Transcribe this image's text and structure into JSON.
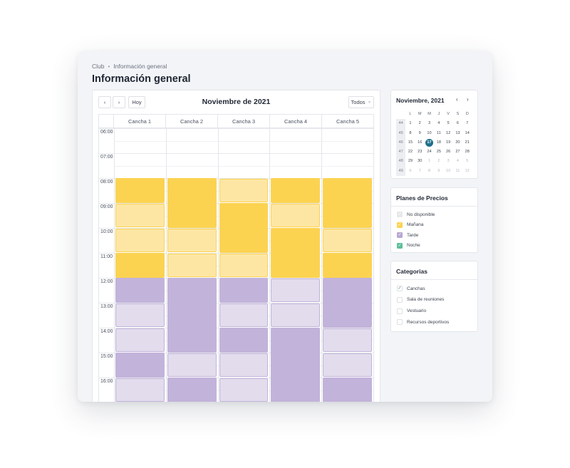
{
  "breadcrumb": {
    "parent": "Club",
    "separator": "•",
    "current": "Información general"
  },
  "page": {
    "title": "Información general"
  },
  "toolbar": {
    "prev": "‹",
    "next": "›",
    "today": "Hoy",
    "month": "Noviembre de 2021",
    "filter": "Todos",
    "filter_caret": "⌄"
  },
  "columns": [
    "Cancha 1",
    "Cancha 2",
    "Cancha 3",
    "Cancha 4",
    "Cancha 5"
  ],
  "times": [
    "06:00",
    "07:00",
    "08:00",
    "09:00",
    "10:00",
    "11:00",
    "12:00",
    "13:00",
    "14:00",
    "15:00",
    "16:00"
  ],
  "colors": {
    "manana": "#fcd351",
    "manana_light": "#fde6a4",
    "tarde": "#c2b3da",
    "tarde_light": "#e2dced",
    "selected_day": "#1f6f8b"
  },
  "bookings": [
    {
      "court": 1,
      "start": "08:00",
      "end": "09:00",
      "plan": "Mañana",
      "shade": "full"
    },
    {
      "court": 1,
      "start": "09:00",
      "end": "10:00",
      "plan": "Mañana",
      "shade": "light"
    },
    {
      "court": 1,
      "start": "10:00",
      "end": "11:00",
      "plan": "Mañana",
      "shade": "light"
    },
    {
      "court": 1,
      "start": "11:00",
      "end": "12:00",
      "plan": "Mañana",
      "shade": "full"
    },
    {
      "court": 1,
      "start": "12:00",
      "end": "13:00",
      "plan": "Tarde",
      "shade": "full"
    },
    {
      "court": 1,
      "start": "13:00",
      "end": "14:00",
      "plan": "Tarde",
      "shade": "light"
    },
    {
      "court": 1,
      "start": "14:00",
      "end": "15:00",
      "plan": "Tarde",
      "shade": "light"
    },
    {
      "court": 1,
      "start": "15:00",
      "end": "16:00",
      "plan": "Tarde",
      "shade": "full"
    },
    {
      "court": 1,
      "start": "16:00",
      "end": "17:00",
      "plan": "Tarde",
      "shade": "light"
    },
    {
      "court": 2,
      "start": "08:00",
      "end": "10:00",
      "plan": "Mañana",
      "shade": "full"
    },
    {
      "court": 2,
      "start": "10:00",
      "end": "11:00",
      "plan": "Mañana",
      "shade": "light"
    },
    {
      "court": 2,
      "start": "11:00",
      "end": "12:00",
      "plan": "Mañana",
      "shade": "light"
    },
    {
      "court": 2,
      "start": "12:00",
      "end": "15:00",
      "plan": "Tarde",
      "shade": "full"
    },
    {
      "court": 2,
      "start": "15:00",
      "end": "16:00",
      "plan": "Tarde",
      "shade": "light"
    },
    {
      "court": 2,
      "start": "16:00",
      "end": "17:00",
      "plan": "Tarde",
      "shade": "full"
    },
    {
      "court": 3,
      "start": "08:00",
      "end": "09:00",
      "plan": "Mañana",
      "shade": "light"
    },
    {
      "court": 3,
      "start": "09:00",
      "end": "11:00",
      "plan": "Mañana",
      "shade": "full"
    },
    {
      "court": 3,
      "start": "11:00",
      "end": "12:00",
      "plan": "Mañana",
      "shade": "light"
    },
    {
      "court": 3,
      "start": "12:00",
      "end": "13:00",
      "plan": "Tarde",
      "shade": "full"
    },
    {
      "court": 3,
      "start": "13:00",
      "end": "14:00",
      "plan": "Tarde",
      "shade": "light"
    },
    {
      "court": 3,
      "start": "14:00",
      "end": "15:00",
      "plan": "Tarde",
      "shade": "full"
    },
    {
      "court": 3,
      "start": "15:00",
      "end": "16:00",
      "plan": "Tarde",
      "shade": "light"
    },
    {
      "court": 3,
      "start": "16:00",
      "end": "17:00",
      "plan": "Tarde",
      "shade": "light"
    },
    {
      "court": 4,
      "start": "08:00",
      "end": "09:00",
      "plan": "Mañana",
      "shade": "full"
    },
    {
      "court": 4,
      "start": "09:00",
      "end": "10:00",
      "plan": "Mañana",
      "shade": "light"
    },
    {
      "court": 4,
      "start": "10:00",
      "end": "12:00",
      "plan": "Mañana",
      "shade": "full"
    },
    {
      "court": 4,
      "start": "12:00",
      "end": "13:00",
      "plan": "Tarde",
      "shade": "light"
    },
    {
      "court": 4,
      "start": "13:00",
      "end": "14:00",
      "plan": "Tarde",
      "shade": "light"
    },
    {
      "court": 4,
      "start": "14:00",
      "end": "17:00",
      "plan": "Tarde",
      "shade": "full"
    },
    {
      "court": 5,
      "start": "08:00",
      "end": "10:00",
      "plan": "Mañana",
      "shade": "full"
    },
    {
      "court": 5,
      "start": "10:00",
      "end": "11:00",
      "plan": "Mañana",
      "shade": "light"
    },
    {
      "court": 5,
      "start": "11:00",
      "end": "12:00",
      "plan": "Mañana",
      "shade": "full"
    },
    {
      "court": 5,
      "start": "12:00",
      "end": "14:00",
      "plan": "Tarde",
      "shade": "full"
    },
    {
      "court": 5,
      "start": "14:00",
      "end": "15:00",
      "plan": "Tarde",
      "shade": "light"
    },
    {
      "court": 5,
      "start": "15:00",
      "end": "16:00",
      "plan": "Tarde",
      "shade": "light"
    },
    {
      "court": 5,
      "start": "16:00",
      "end": "17:00",
      "plan": "Tarde",
      "shade": "full"
    }
  ],
  "mini_calendar": {
    "title": "Noviembre, 2021",
    "prev": "‹",
    "next": "›",
    "weekdays": [
      "L",
      "M",
      "M",
      "J",
      "V",
      "S",
      "D"
    ],
    "weeks": [
      {
        "wk": "44",
        "days": [
          "1",
          "2",
          "3",
          "4",
          "5",
          "6",
          "7"
        ]
      },
      {
        "wk": "45",
        "days": [
          "8",
          "9",
          "10",
          "11",
          "12",
          "13",
          "14"
        ]
      },
      {
        "wk": "46",
        "days": [
          "15",
          "16",
          "17",
          "18",
          "19",
          "20",
          "21"
        ]
      },
      {
        "wk": "47",
        "days": [
          "22",
          "23",
          "24",
          "25",
          "26",
          "27",
          "28"
        ]
      },
      {
        "wk": "48",
        "days": [
          "29",
          "30",
          "1",
          "2",
          "3",
          "4",
          "5"
        ]
      },
      {
        "wk": "49",
        "days": [
          "6",
          "7",
          "8",
          "9",
          "10",
          "11",
          "12"
        ]
      }
    ],
    "selected": "17"
  },
  "planes": {
    "title": "Planes de Precios",
    "items": [
      {
        "label": "No disponible",
        "checked": true
      },
      {
        "label": "Mañana",
        "checked": true
      },
      {
        "label": "Tarde",
        "checked": true
      },
      {
        "label": "Noche",
        "checked": true
      }
    ]
  },
  "categorias": {
    "title": "Categorias",
    "items": [
      {
        "label": "Canchas",
        "checked": true
      },
      {
        "label": "Sala de reuniones",
        "checked": false
      },
      {
        "label": "Vestuario",
        "checked": false
      },
      {
        "label": "Recursos deportivos",
        "checked": false
      }
    ]
  }
}
